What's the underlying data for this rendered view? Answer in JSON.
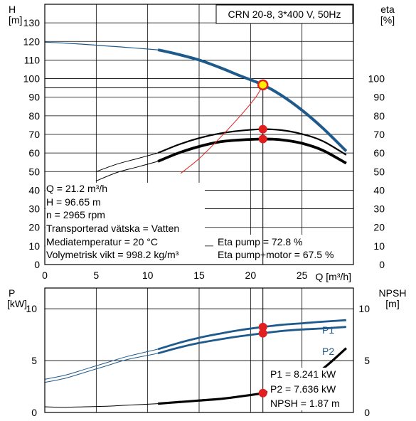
{
  "chart_data": [
    {
      "type": "line",
      "title": "CRN 20-8, 3*400 V, 50Hz",
      "left_axis": {
        "label": "H",
        "unit": "[m]",
        "range": [
          0,
          140
        ],
        "ticks": [
          "0",
          "10",
          "20",
          "30",
          "40",
          "50",
          "60",
          "70",
          "80",
          "90",
          "100",
          "110",
          "120",
          "130"
        ]
      },
      "right_axis": {
        "label": "eta",
        "unit": "[%]",
        "range": [
          0,
          140
        ],
        "ticks": [
          "0",
          "10",
          "20",
          "30",
          "40",
          "50",
          "60",
          "70",
          "80",
          "90",
          "100"
        ]
      },
      "x_axis": {
        "label": "Q [m³/h]",
        "range": [
          0,
          30
        ],
        "ticks": [
          "0",
          "5",
          "10",
          "15",
          "20",
          "25"
        ]
      },
      "grid": true,
      "series": [
        {
          "role": "head-thin",
          "color": "#1f5a8c",
          "x": [
            0,
            2,
            4,
            6,
            8,
            11
          ],
          "y": [
            119.6,
            119.1,
            118.4,
            117.6,
            116.8,
            115.5
          ]
        },
        {
          "role": "head",
          "color": "#1f5a8c",
          "x": [
            11,
            13,
            15,
            17,
            19,
            21.2,
            23,
            25,
            27,
            29.3
          ],
          "y": [
            115.5,
            113,
            110,
            106,
            101.5,
            96.65,
            91,
            83,
            73.5,
            61
          ]
        },
        {
          "role": "eta-pump-thin",
          "color": "#000000",
          "x": [
            5,
            7,
            9,
            11
          ],
          "y": [
            50,
            54,
            57,
            60
          ]
        },
        {
          "role": "eta-pump",
          "color": "#000000",
          "x": [
            11,
            13,
            15,
            17,
            19,
            21.2,
            23,
            25,
            27,
            29.3
          ],
          "y": [
            60,
            64.5,
            68,
            70.5,
            72,
            72.8,
            72.3,
            70.2,
            66.5,
            59
          ]
        },
        {
          "role": "eta-total-thin",
          "color": "#000000",
          "x": [
            5,
            7,
            9,
            11
          ],
          "y": [
            45,
            49.5,
            52.5,
            55.5
          ]
        },
        {
          "role": "eta-total",
          "color": "#000000",
          "x": [
            11,
            13,
            15,
            17,
            19,
            21.2,
            23,
            25,
            27,
            29.3
          ],
          "y": [
            55.5,
            60,
            63.5,
            66,
            67,
            67.5,
            67.1,
            65.2,
            61.5,
            54.5
          ]
        },
        {
          "role": "system-curve",
          "color": "#e02020",
          "x": [
            13.2,
            15,
            17,
            19,
            20.5,
            21.2
          ],
          "y": [
            49,
            57,
            68,
            80,
            90,
            96.65
          ]
        }
      ],
      "duty_point": {
        "Q": 21.2,
        "H": 96.65,
        "eta_pump": 72.8,
        "eta_total": 67.5
      },
      "info_left": [
        "Q = 21.2 m³/h",
        "H = 96.65 m",
        "n = 2965 rpm",
        "Transporterad vätska = Vatten",
        "Mediatemperatur = 20 °C",
        "Volymetrisk vikt = 998.2 kg/m³"
      ],
      "info_right": [
        "Eta pump = 72.8 %",
        "Eta pump+motor = 67.5 %"
      ],
      "colors": {
        "head": "#1f5a8c",
        "duty_marker": "#e02020",
        "duty_fill": "#ffee00"
      }
    },
    {
      "type": "line",
      "left_axis": {
        "label": "P",
        "unit": "[kW]",
        "range": [
          0,
          12
        ],
        "ticks": [
          "0",
          "5",
          "10"
        ]
      },
      "right_axis": {
        "label": "NPSH",
        "unit": "[m]",
        "range": [
          0,
          12
        ],
        "ticks": [
          "0",
          "5",
          "10"
        ]
      },
      "x_axis": {
        "range": [
          0,
          30
        ]
      },
      "grid": true,
      "series": [
        {
          "name": "P1",
          "color": "#1f5a8c",
          "x": [
            0,
            2,
            4,
            6,
            8,
            11
          ],
          "y": [
            3.2,
            3.6,
            4.2,
            4.8,
            5.4,
            6.1
          ]
        },
        {
          "name": "P1",
          "color": "#1f5a8c",
          "x": [
            11,
            13,
            15,
            17,
            19,
            21.2,
            23,
            25,
            27,
            29.3
          ],
          "y": [
            6.1,
            6.7,
            7.2,
            7.6,
            7.95,
            8.241,
            8.45,
            8.6,
            8.75,
            8.9
          ]
        },
        {
          "name": "P2",
          "color": "#1f5a8c",
          "x": [
            0,
            2,
            4,
            6,
            8,
            11
          ],
          "y": [
            2.9,
            3.3,
            3.9,
            4.5,
            5.1,
            5.7
          ]
        },
        {
          "name": "P2",
          "color": "#1f5a8c",
          "x": [
            11,
            13,
            15,
            17,
            19,
            21.2,
            23,
            25,
            27,
            29.3
          ],
          "y": [
            5.7,
            6.25,
            6.7,
            7.05,
            7.35,
            7.636,
            7.85,
            8.0,
            8.1,
            8.25
          ]
        },
        {
          "role": "npsh-thin",
          "color": "#000000",
          "x": [
            0,
            2,
            4,
            6,
            8,
            11
          ],
          "y": [
            0.55,
            0.5,
            0.55,
            0.6,
            0.7,
            0.85
          ]
        },
        {
          "role": "npsh",
          "color": "#000000",
          "x": [
            11,
            13,
            15,
            17,
            19,
            21.2,
            23,
            25,
            27,
            29.3
          ],
          "y": [
            0.85,
            1.0,
            1.15,
            1.3,
            1.55,
            1.87,
            2.35,
            3.1,
            4.2,
            6.2
          ]
        }
      ],
      "legend_labels": [
        "P1",
        "P2"
      ],
      "duty_point": {
        "P1": 8.241,
        "P2": 7.636,
        "NPSH": 1.87
      },
      "info": [
        "P1 = 8.241 kW",
        "P2 = 7.636 kW",
        "NPSH = 1.87 m"
      ]
    }
  ]
}
